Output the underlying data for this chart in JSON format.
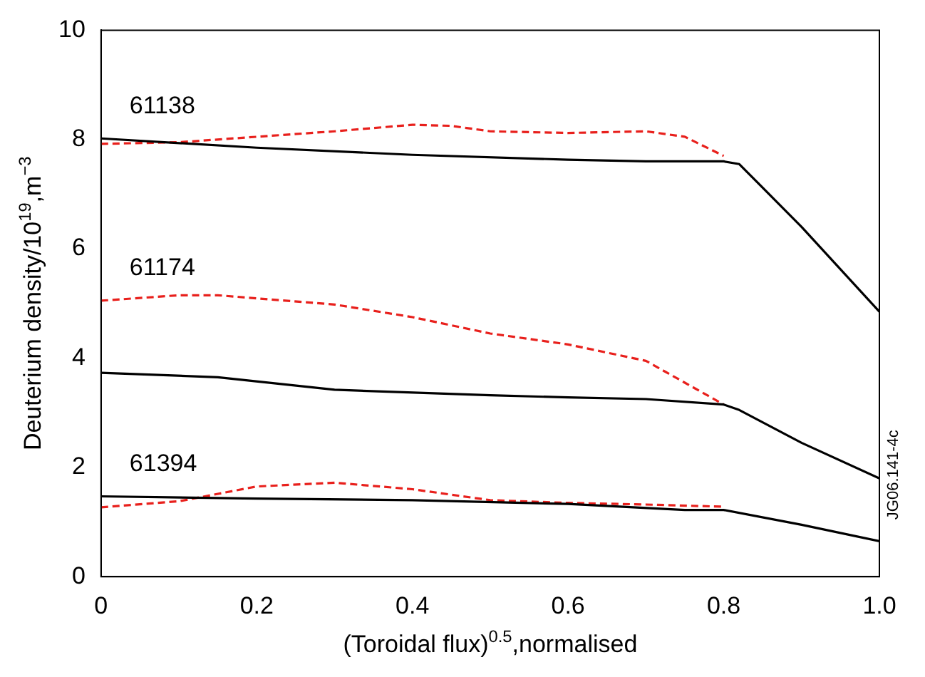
{
  "chart_data": {
    "type": "line",
    "xlabel": "(Toroidal flux)$^{0.5}$,normalised",
    "ylabel": "Deuterium density/10$^{19}$,m$^{−3}$",
    "xlim": [
      0,
      1
    ],
    "ylim": [
      0,
      10
    ],
    "xticks": [
      0,
      0.2,
      0.4,
      0.6,
      0.8,
      {
        "value": 1,
        "label": "1.0"
      }
    ],
    "yticks": [
      0,
      2,
      4,
      6,
      8,
      10
    ],
    "grid": false,
    "legend": false,
    "marker": "none",
    "series": [
      {
        "color": "#000000",
        "line_style": "solid",
        "x": [
          0,
          0.2,
          0.4,
          0.6,
          0.7,
          0.8,
          0.82,
          0.9,
          1.0
        ],
        "values": [
          8.02,
          7.85,
          7.72,
          7.63,
          7.6,
          7.6,
          7.55,
          6.4,
          4.85
        ]
      },
      {
        "color": "#e8201c",
        "line_style": "dashed",
        "x": [
          0,
          0.1,
          0.2,
          0.3,
          0.4,
          0.45,
          0.5,
          0.6,
          0.7,
          0.75,
          0.8
        ],
        "values": [
          7.92,
          7.95,
          8.05,
          8.15,
          8.27,
          8.25,
          8.15,
          8.12,
          8.15,
          8.05,
          7.7
        ]
      },
      {
        "color": "#000000",
        "line_style": "solid",
        "x": [
          0,
          0.15,
          0.3,
          0.5,
          0.6,
          0.7,
          0.8,
          0.82,
          0.9,
          1.0
        ],
        "values": [
          3.73,
          3.65,
          3.42,
          3.32,
          3.28,
          3.25,
          3.15,
          3.05,
          2.45,
          1.8
        ]
      },
      {
        "color": "#e8201c",
        "line_style": "dashed",
        "x": [
          0,
          0.1,
          0.15,
          0.3,
          0.4,
          0.5,
          0.6,
          0.7,
          0.75,
          0.8
        ],
        "values": [
          5.05,
          5.15,
          5.15,
          4.98,
          4.75,
          4.45,
          4.25,
          3.95,
          3.55,
          3.15
        ]
      },
      {
        "color": "#000000",
        "line_style": "solid",
        "x": [
          0,
          0.2,
          0.4,
          0.6,
          0.75,
          0.8,
          0.9,
          1.0
        ],
        "values": [
          1.47,
          1.43,
          1.4,
          1.33,
          1.22,
          1.22,
          0.95,
          0.65
        ]
      },
      {
        "color": "#e8201c",
        "line_style": "dashed",
        "x": [
          0,
          0.1,
          0.2,
          0.3,
          0.4,
          0.5,
          0.6,
          0.7,
          0.8
        ],
        "values": [
          1.27,
          1.38,
          1.65,
          1.72,
          1.6,
          1.4,
          1.35,
          1.32,
          1.28
        ]
      }
    ],
    "annotations": [
      "61138",
      "61174",
      "61394",
      "JG06.141-4c"
    ]
  }
}
